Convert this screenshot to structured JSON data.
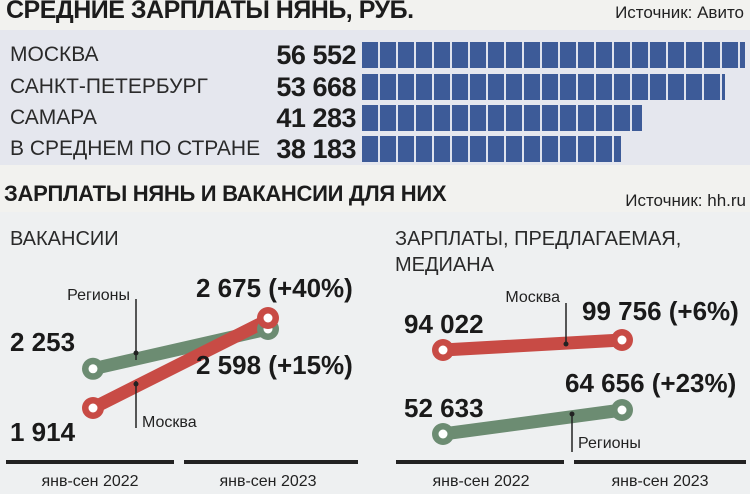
{
  "top_chart": {
    "title": "СРЕДНИЕ ЗАРПЛАТЫ НЯНЬ, РУБ.",
    "source": "Источник: Авито",
    "colors": {
      "bar": "#3d5b98"
    }
  },
  "bottom_section": {
    "title": "ЗАРПЛАТЫ НЯНЬ И ВАКАНСИИ ДЛЯ НИХ",
    "source": "Источник: hh.ru",
    "left_title": "ВАКАНСИИ",
    "right_title": "ЗАРПЛАТЫ, ПРЕДЛАГАЕМАЯ,\nМЕДИАНА",
    "colors": {
      "moscow": "#c84b45",
      "regions": "#6c8c72"
    }
  },
  "chart_data": [
    {
      "type": "bar",
      "title": "СРЕДНИЕ ЗАРПЛАТЫ НЯНЬ, РУБ.",
      "categories": [
        "МОСКВА",
        "САНКТ-ПЕТЕРБУРГ",
        "САМАРА",
        "В СРЕДНЕМ ПО СТРАНЕ"
      ],
      "values": [
        56552,
        53668,
        41283,
        38183
      ],
      "value_labels": [
        "56 552",
        "53 668",
        "41 283",
        "38 183"
      ],
      "xlim": [
        0,
        56552
      ]
    },
    {
      "type": "line",
      "title": "ВАКАНСИИ",
      "categories": [
        "янв-сен 2022",
        "янв-сен 2023"
      ],
      "series": [
        {
          "name": "Регионы",
          "values": [
            2253,
            2598
          ],
          "labels": [
            "2 253",
            "2 598 (+15%)"
          ]
        },
        {
          "name": "Москва",
          "values": [
            1914,
            2675
          ],
          "labels": [
            "1 914",
            "2 675 (+40%)"
          ]
        }
      ],
      "ylim": [
        1800,
        2800
      ]
    },
    {
      "type": "line",
      "title": "ЗАРПЛАТЫ, ПРЕДЛАГАЕМАЯ, МЕДИАНА",
      "categories": [
        "янв-сен 2022",
        "янв-сен 2023"
      ],
      "series": [
        {
          "name": "Москва",
          "values": [
            94022,
            99756
          ],
          "labels": [
            "94 022",
            "99 756 (+6%)"
          ]
        },
        {
          "name": "Регионы",
          "values": [
            52633,
            64656
          ],
          "labels": [
            "52 633",
            "64 656 (+23%)"
          ]
        }
      ],
      "ylim": [
        40000,
        110000
      ]
    }
  ]
}
